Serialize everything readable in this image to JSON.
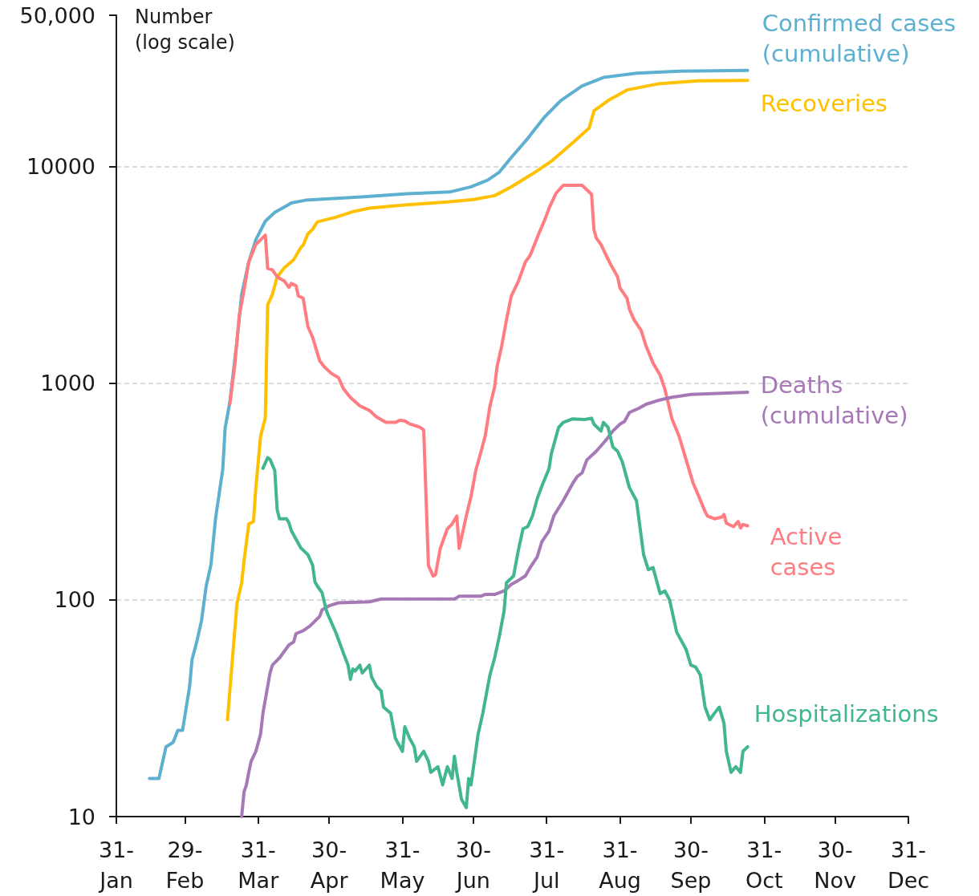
{
  "chart_data": {
    "type": "line",
    "ylabel": "Number (log scale)",
    "log": true,
    "grid": "y",
    "xlim": [
      "--01-31",
      "--12-31"
    ],
    "xticks": [
      {
        "value": "--01-31",
        "label": "31-Jan"
      },
      {
        "value": "--02-29",
        "label": "29-Feb"
      },
      {
        "value": "--03-31",
        "label": "31-Mar"
      },
      {
        "value": "--04-30",
        "label": "30-Apr"
      },
      {
        "value": "--05-31",
        "label": "31-May"
      },
      {
        "value": "--06-30",
        "label": "30-Jun"
      },
      {
        "value": "--07-31",
        "label": "31-Jul"
      },
      {
        "value": "--08-31",
        "label": "31-Aug"
      },
      {
        "value": "--09-30",
        "label": "30-Sep"
      },
      {
        "value": "--10-31",
        "label": "31-Oct"
      },
      {
        "value": "--11-30",
        "label": "30-Nov"
      },
      {
        "value": "--12-31",
        "label": "31-Dec"
      }
    ],
    "ylim": [
      10,
      50000
    ],
    "yticks": [
      10,
      100,
      1000,
      10000,
      {
        "value": 50000,
        "label": "50,000"
      }
    ],
    "series": [
      {
        "name": "Confirmed cases (cumulative)",
        "color": "#5eb0d0",
        "x": [
          "--02-14",
          "--02-18",
          "--02-21",
          "--02-24",
          "--02-26",
          "--02-28",
          "--03-02",
          "--03-03",
          "--03-05",
          "--03-07",
          "--03-09",
          "--03-11",
          "--03-13",
          "--03-16",
          "--03-17",
          "--03-19",
          "--03-22",
          "--03-24",
          "--03-27",
          "--03-30",
          "--04-03",
          "--04-07",
          "--04-12",
          "--04-14",
          "--04-20",
          "--05-15",
          "--06-02",
          "--06-20",
          "--06-29",
          "--07-06",
          "--07-11",
          "--07-16",
          "--07-23",
          "--07-30",
          "--08-06",
          "--08-15",
          "--08-24",
          "--09-07",
          "--09-25",
          "--10-24"
        ],
        "values": [
          15,
          15,
          21,
          22,
          25,
          25,
          40,
          53,
          64,
          80,
          116,
          145,
          240,
          400,
          620,
          820,
          1560,
          2570,
          3630,
          4600,
          5600,
          6150,
          6600,
          6800,
          7000,
          7260,
          7500,
          7640,
          8070,
          8660,
          9440,
          11000,
          13500,
          16900,
          20200,
          23600,
          25800,
          27000,
          27600,
          27850
        ]
      },
      {
        "name": "Recoveries",
        "color": "#ffc000",
        "x": [
          "--03-18",
          "--03-22",
          "--03-24",
          "--03-25",
          "--03-27",
          "--03-29",
          "--03-30",
          "--04-01",
          "--04-03",
          "--04-04",
          "--04-06",
          "--04-08",
          "--04-11",
          "--04-15",
          "--04-16",
          "--04-18",
          "--04-19",
          "--04-21",
          "--04-23",
          "--04-25",
          "--05-03",
          "--05-10",
          "--05-17",
          "--06-01",
          "--06-19",
          "--06-30",
          "--07-09",
          "--07-16",
          "--07-25",
          "--08-02",
          "--08-11",
          "--08-18",
          "--08-20",
          "--08-26",
          "--09-03",
          "--09-16",
          "--10-03",
          "--10-24"
        ],
        "values": [
          28,
          96,
          120,
          151,
          224,
          230,
          330,
          570,
          690,
          2300,
          2570,
          3100,
          3410,
          3720,
          3880,
          4230,
          4340,
          4900,
          5140,
          5560,
          5850,
          6200,
          6430,
          6660,
          6870,
          7050,
          7350,
          8070,
          9260,
          10600,
          12900,
          15100,
          18100,
          20200,
          22600,
          24100,
          24900,
          25000
        ]
      },
      {
        "name": "Active cases",
        "color": "#ff7c80",
        "x": [
          "--03-19",
          "--03-21",
          "--03-23",
          "--03-25",
          "--03-27",
          "--03-30",
          "--04-03",
          "--04-04",
          "--04-06",
          "--04-08",
          "--04-11",
          "--04-13",
          "--04-14",
          "--04-16",
          "--04-17",
          "--04-19",
          "--04-21",
          "--04-23",
          "--04-26",
          "--04-28",
          "--05-01",
          "--05-04",
          "--05-06",
          "--05-09",
          "--05-13",
          "--05-17",
          "--05-20",
          "--05-24",
          "--05-28",
          "--05-30",
          "--06-01",
          "--06-03",
          "--06-07",
          "--06-09",
          "--06-11",
          "--06-13",
          "--06-14",
          "--06-16",
          "--06-19",
          "--06-21",
          "--06-23",
          "--06-24",
          "--06-27",
          "--06-29",
          "--07-01",
          "--07-03",
          "--07-05",
          "--07-07",
          "--07-09",
          "--07-10",
          "--07-12",
          "--07-14",
          "--07-16",
          "--07-19",
          "--07-22",
          "--07-24",
          "--07-28",
          "--07-30",
          "--08-01",
          "--08-04",
          "--08-07",
          "--08-15",
          "--08-19",
          "--08-20",
          "--08-21",
          "--08-23",
          "--08-25",
          "--08-27",
          "--08-30",
          "--08-31",
          "--09-03",
          "--09-04",
          "--09-06",
          "--09-09",
          "--09-11",
          "--09-14",
          "--09-17",
          "--09-19",
          "--09-22",
          "--09-25",
          "--09-28",
          "--10-01",
          "--10-03",
          "--10-06",
          "--10-07",
          "--10-10",
          "--10-13",
          "--10-14",
          "--10-15",
          "--10-18",
          "--10-20",
          "--10-21",
          "--10-22",
          "--10-24"
        ],
        "values": [
          800,
          1190,
          2060,
          2690,
          3630,
          4370,
          4830,
          3390,
          3340,
          3100,
          2970,
          2770,
          2890,
          2820,
          2530,
          2470,
          1830,
          1630,
          1270,
          1190,
          1110,
          1060,
          945,
          860,
          787,
          750,
          700,
          660,
          660,
          675,
          670,
          650,
          630,
          610,
          144,
          129,
          131,
          173,
          213,
          224,
          244,
          173,
          244,
          300,
          395,
          474,
          570,
          783,
          963,
          1190,
          1490,
          1960,
          2520,
          2950,
          3630,
          3890,
          5000,
          5610,
          6430,
          7550,
          8200,
          8200,
          7450,
          5120,
          4680,
          4370,
          3930,
          3550,
          3100,
          2760,
          2470,
          2200,
          1960,
          1750,
          1490,
          1240,
          1090,
          940,
          685,
          570,
          443,
          345,
          307,
          256,
          244,
          237,
          241,
          248,
          226,
          218,
          230,
          215,
          223,
          220
        ]
      },
      {
        "name": "Deaths (cumulative)",
        "color": "#a678b5",
        "x": [
          "--03-24",
          "--03-25",
          "--03-26",
          "--03-27",
          "--03-28",
          "--03-30",
          "--04-01",
          "--04-02",
          "--04-05",
          "--04-06",
          "--04-09",
          "--04-13",
          "--04-15",
          "--04-16",
          "--04-19",
          "--04-22",
          "--04-26",
          "--04-27",
          "--04-30",
          "--05-04",
          "--05-17",
          "--05-22",
          "--06-22",
          "--06-24",
          "--07-03",
          "--07-05",
          "--07-09",
          "--07-13",
          "--07-16",
          "--07-19",
          "--07-22",
          "--07-24",
          "--07-27",
          "--07-29",
          "--08-01",
          "--08-03",
          "--08-07",
          "--08-11",
          "--08-13",
          "--08-15",
          "--08-17",
          "--08-21",
          "--08-25",
          "--08-28",
          "--08-31",
          "--09-02",
          "--09-04",
          "--09-08",
          "--09-11",
          "--09-16",
          "--09-22",
          "--09-30",
          "--10-24"
        ],
        "values": [
          10,
          13,
          14,
          16,
          18,
          20,
          24,
          30,
          46,
          50,
          54,
          62,
          64,
          70,
          72,
          76,
          84,
          90,
          94,
          97,
          98,
          101,
          101,
          104,
          104,
          106,
          106,
          110,
          118,
          123,
          129,
          141,
          158,
          186,
          208,
          244,
          287,
          345,
          372,
          386,
          443,
          486,
          545,
          602,
          648,
          668,
          733,
          767,
          800,
          833,
          862,
          889,
          909
        ]
      },
      {
        "name": "Hospitalizations",
        "color": "#41b68f",
        "x": [
          "--04-02",
          "--04-04",
          "--04-05",
          "--04-07",
          "--04-08",
          "--04-09",
          "--04-12",
          "--04-13",
          "--04-14",
          "--04-18",
          "--04-21",
          "--04-23",
          "--04-24",
          "--04-25",
          "--04-27",
          "--04-29",
          "--05-03",
          "--05-06",
          "--05-08",
          "--05-09",
          "--05-10",
          "--05-11",
          "--05-13",
          "--05-14",
          "--05-17",
          "--05-18",
          "--05-20",
          "--05-22",
          "--05-23",
          "--05-26",
          "--05-28",
          "--05-31",
          "--06-01",
          "--06-03",
          "--06-05",
          "--06-06",
          "--06-09",
          "--06-11",
          "--06-12",
          "--06-15",
          "--06-17",
          "--06-19",
          "--06-21",
          "--06-22",
          "--06-23",
          "--06-25",
          "--06-27",
          "--06-28",
          "--06-29",
          "--07-02",
          "--07-04",
          "--07-07",
          "--07-09",
          "--07-11",
          "--07-13",
          "--07-14",
          "--07-17",
          "--07-19",
          "--07-21",
          "--07-23",
          "--07-25",
          "--07-27",
          "--07-29",
          "--08-01",
          "--08-02",
          "--08-05",
          "--08-07",
          "--08-11",
          "--08-16",
          "--08-19",
          "--08-20",
          "--08-23",
          "--08-24",
          "--08-26",
          "--08-28",
          "--08-30",
          "--09-01",
          "--09-04",
          "--09-07",
          "--09-10",
          "--09-12",
          "--09-14",
          "--09-17",
          "--09-19",
          "--09-21",
          "--09-24",
          "--09-28",
          "--09-30",
          "--10-02",
          "--10-04",
          "--10-06",
          "--10-08",
          "--10-10",
          "--10-12",
          "--10-14",
          "--10-15",
          "--10-17",
          "--10-19",
          "--10-21",
          "--10-22",
          "--10-24"
        ],
        "values": [
          405,
          454,
          445,
          396,
          262,
          237,
          237,
          227,
          209,
          174,
          162,
          145,
          121,
          116,
          108,
          88,
          70,
          57,
          50,
          43,
          48,
          47,
          50,
          46,
          50,
          44,
          40,
          38,
          32,
          30,
          23,
          20,
          26,
          23,
          21,
          18,
          20,
          18,
          16,
          17,
          14,
          17,
          15,
          19,
          16,
          12,
          11,
          15,
          14,
          24,
          30,
          45,
          54,
          68,
          89,
          120,
          129,
          169,
          213,
          218,
          244,
          293,
          336,
          404,
          474,
          624,
          660,
          685,
          680,
          690,
          648,
          602,
          660,
          625,
          508,
          486,
          434,
          330,
          287,
          162,
          138,
          141,
          107,
          110,
          100,
          71,
          59,
          50,
          49,
          45,
          32,
          28,
          30,
          32,
          27,
          20,
          16,
          17,
          16,
          20,
          21
        ]
      }
    ]
  }
}
